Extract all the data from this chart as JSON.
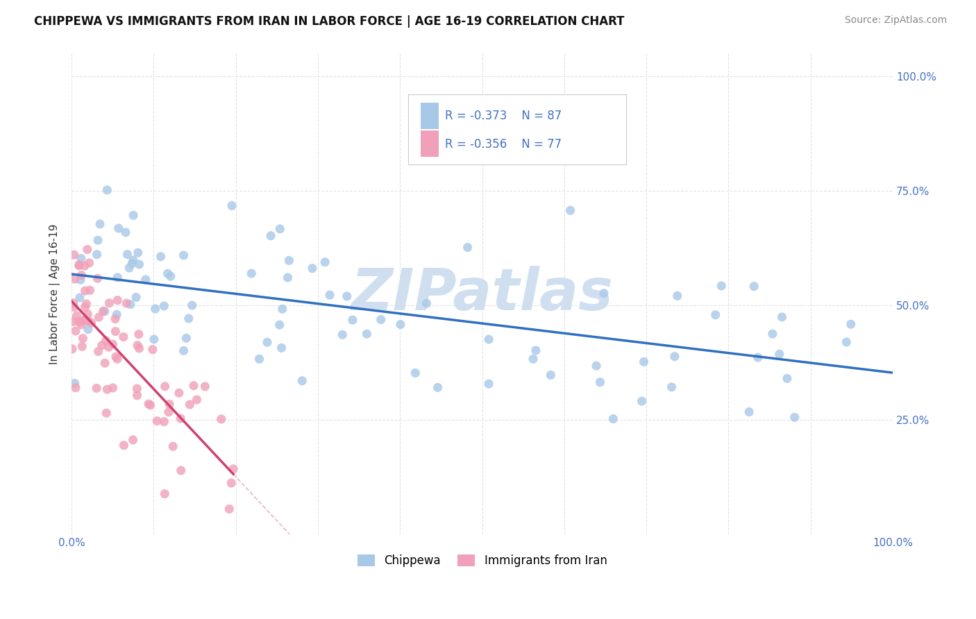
{
  "title": "CHIPPEWA VS IMMIGRANTS FROM IRAN IN LABOR FORCE | AGE 16-19 CORRELATION CHART",
  "source": "Source: ZipAtlas.com",
  "ylabel": "In Labor Force | Age 16-19",
  "legend_chippewa": "Chippewa",
  "legend_iran": "Immigrants from Iran",
  "r_chippewa": -0.373,
  "n_chippewa": 87,
  "r_iran": -0.356,
  "n_iran": 77,
  "color_chippewa": "#a8c8e8",
  "color_iran": "#f0a0b8",
  "color_trend_chippewa": "#3070c0",
  "color_trend_iran": "#d04070",
  "color_watermark": "#d0dff0",
  "background_color": "#ffffff",
  "grid_color": "#e0e0e0"
}
